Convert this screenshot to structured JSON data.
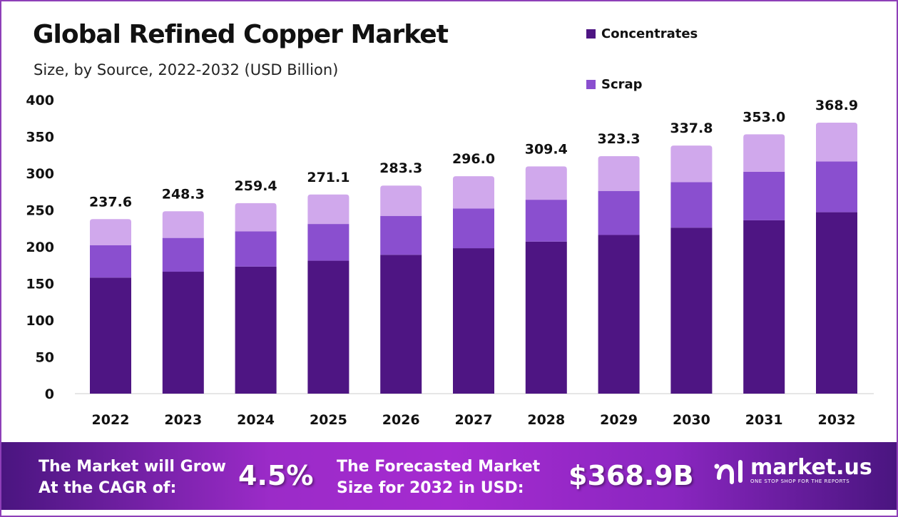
{
  "chart_data": {
    "type": "bar",
    "stacked": true,
    "title": "Global Refined Copper Market",
    "subtitle": "Size, by Source, 2022-2032 (USD Billion)",
    "categories": [
      "2022",
      "2023",
      "2024",
      "2025",
      "2026",
      "2027",
      "2028",
      "2029",
      "2030",
      "2031",
      "2032"
    ],
    "series": [
      {
        "name": "Concentrates",
        "color": "#4e1583",
        "values": [
          158,
          166,
          173,
          181,
          189,
          198,
          207,
          216,
          226,
          236,
          247
        ]
      },
      {
        "name": "Scrap",
        "color": "#8a4fcf",
        "values": [
          44,
          46,
          48,
          50,
          53,
          54,
          57,
          60,
          62,
          66,
          69
        ]
      },
      {
        "color": "#d0a8ec",
        "values": [
          35.6,
          36.3,
          38.4,
          40.1,
          41.3,
          44.0,
          45.4,
          47.3,
          49.8,
          51.0,
          52.9
        ]
      }
    ],
    "totals": [
      "237.6",
      "248.3",
      "259.4",
      "271.1",
      "283.3",
      "296.0",
      "309.4",
      "323.3",
      "337.8",
      "353.0",
      "368.9"
    ],
    "yticks": [
      "0",
      "50",
      "100",
      "150",
      "200",
      "250",
      "300",
      "350",
      "400"
    ],
    "ylim": [
      0,
      400
    ],
    "grid": false,
    "legend": "top-right"
  },
  "banner": {
    "cagr_label_1": "The Market will Grow",
    "cagr_label_2": "At the CAGR of:",
    "cagr_value": "4.5%",
    "forecast_label_1": "The Forecasted Market",
    "forecast_label_2": "Size for 2032 in USD:",
    "forecast_value": "$368.9B",
    "logo_name": "market.us",
    "logo_tagline": "ONE STOP SHOP FOR THE REPORTS"
  }
}
